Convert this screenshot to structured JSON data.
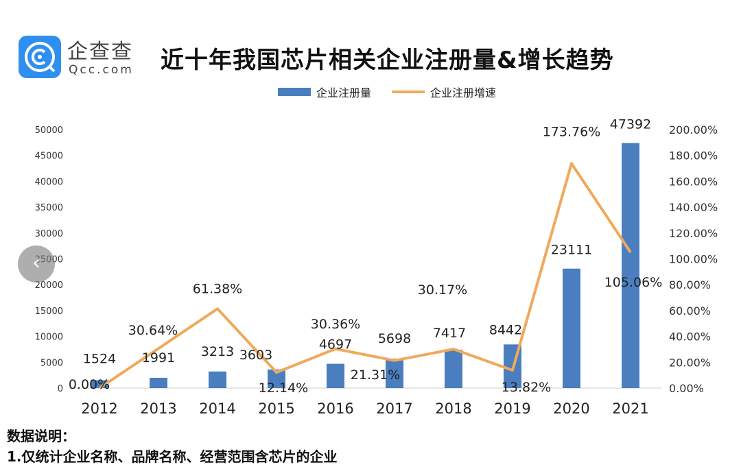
{
  "brand": {
    "name_cn": "企查查",
    "name_en": "Qcc.com"
  },
  "chart_data": {
    "type": "bar+line",
    "title": "近十年我国芯片相关企业注册量&增长趋势",
    "categories": [
      "2012",
      "2013",
      "2014",
      "2015",
      "2016",
      "2017",
      "2018",
      "2019",
      "2020",
      "2021"
    ],
    "series": [
      {
        "name": "企业注册量",
        "type": "bar",
        "axis": "left",
        "color": "#4a7ebf",
        "values": [
          1524,
          1991,
          3213,
          3603,
          4697,
          5698,
          7417,
          8442,
          23111,
          47392
        ],
        "labels": [
          "1524",
          "1991",
          "3213",
          "3603",
          "4697",
          "5698",
          "7417",
          "8442",
          "23111",
          "47392"
        ]
      },
      {
        "name": "企业注册增速",
        "type": "line",
        "axis": "right",
        "color": "#f0a95a",
        "values": [
          0,
          30.64,
          61.38,
          12.14,
          30.36,
          21.31,
          30.17,
          13.82,
          173.76,
          105.06
        ],
        "labels": [
          "0.00%",
          "30.64%",
          "61.38%",
          "12.14%",
          "30.36%",
          "21.31%",
          "30.17%",
          "13.82%",
          "173.76%",
          "105.06%"
        ]
      }
    ],
    "ylim_left": [
      0,
      50000
    ],
    "yticks_left": [
      "0",
      "5000",
      "10000",
      "15000",
      "20000",
      "25000",
      "30000",
      "35000",
      "40000",
      "45000",
      "50000"
    ],
    "ylim_right": [
      0,
      200
    ],
    "yticks_right": [
      "0.00%",
      "20.00%",
      "40.00%",
      "60.00%",
      "80.00%",
      "100.00%",
      "120.00%",
      "140.00%",
      "160.00%",
      "180.00%",
      "200.00%"
    ],
    "legend": "top-center",
    "grid": false
  },
  "notes": {
    "heading": "数据说明：",
    "line1": "1.仅统计企业名称、品牌名称、经营范围含芯片的企业"
  },
  "nav": {
    "prev_icon": "chevron-left-icon"
  }
}
